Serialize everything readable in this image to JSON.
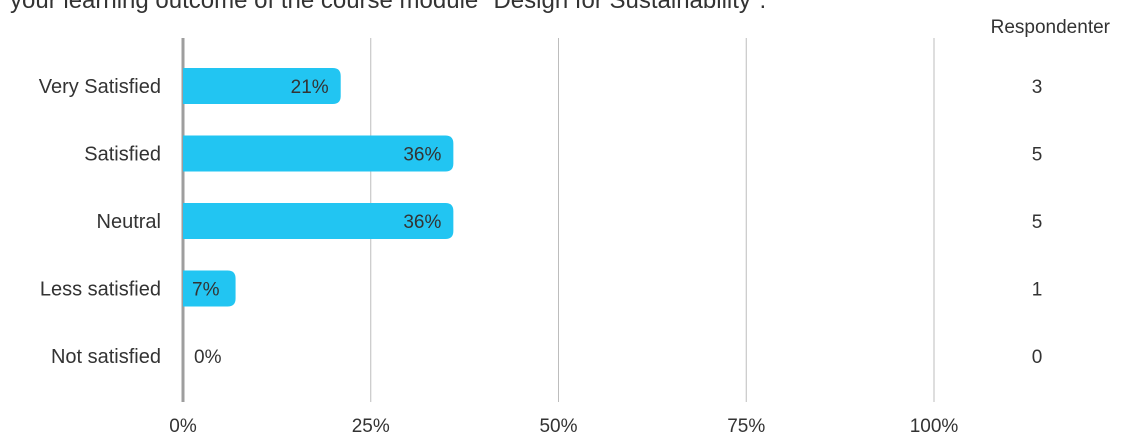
{
  "chart_data": {
    "type": "bar",
    "orientation": "horizontal",
    "title": "your learning outcome of the course module \"Design for Sustainability\".",
    "categories": [
      "Very Satisfied",
      "Satisfied",
      "Neutral",
      "Less satisfied",
      "Not satisfied"
    ],
    "values": [
      21,
      36,
      36,
      7,
      0
    ],
    "value_labels": [
      "21%",
      "36%",
      "36%",
      "7%",
      "0%"
    ],
    "respondents_header": "Respondenter",
    "respondents": [
      "3",
      "5",
      "5",
      "1",
      "0"
    ],
    "x_ticks": [
      "0%",
      "25%",
      "50%",
      "75%",
      "100%"
    ],
    "x_tick_values": [
      0,
      25,
      50,
      75,
      100
    ],
    "xlim": [
      0,
      100
    ],
    "grid": true,
    "legend": "none",
    "bar_color": "#22c5f2",
    "axis_color": "#9e9e9e",
    "grid_color": "#bdbdbd",
    "text_color": "#333333"
  }
}
